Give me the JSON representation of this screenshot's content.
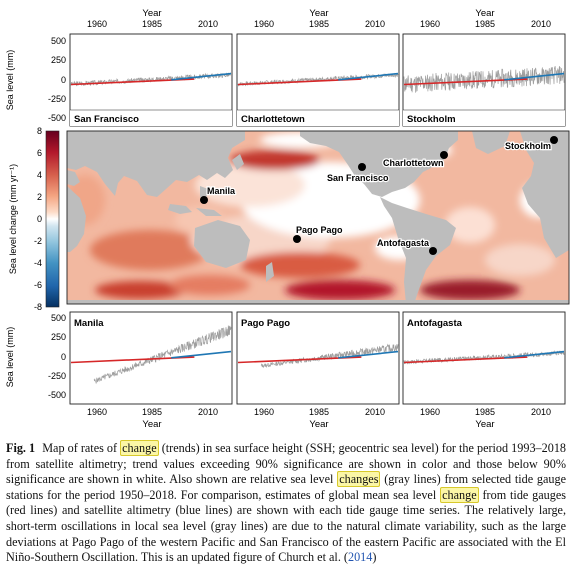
{
  "figure": {
    "year_label": "Year",
    "year_ticks": [
      "1960",
      "1985",
      "2010"
    ],
    "station_ylabel": "Sea level (mm)",
    "station_yticks": [
      "500",
      "250",
      "0",
      "-250",
      "-500"
    ],
    "colorbar_label": "Sea level change (mm yr⁻¹)",
    "colorbar_ticks": [
      "8",
      "6",
      "4",
      "2",
      "0",
      "-2",
      "-4",
      "-6",
      "-8"
    ],
    "top_panels": [
      {
        "title": "San Francisco"
      },
      {
        "title": "Charlottetown"
      },
      {
        "title": "Stockholm"
      }
    ],
    "bottom_panels": [
      {
        "title": "Manila"
      },
      {
        "title": "Pago Pago"
      },
      {
        "title": "Antofagasta"
      }
    ],
    "map_labels": [
      "San Francisco",
      "Charlottetown",
      "Stockholm",
      "Manila",
      "Pago Pago",
      "Antofagasta"
    ],
    "colors": {
      "tide_gauge": "#d62728",
      "altimetry": "#1f77b4",
      "local": "#9e9e9e",
      "land": "#bdbdbd"
    }
  },
  "caption": {
    "label": "Fig. 1",
    "p1": "Map of rates of",
    "h1": "change",
    "p2": "(trends) in sea surface height (SSH; geocentric sea level) for the period 1993–2018 from satellite altimetry; trend values exceeding 90% significance are shown in color and those below 90% significance are shown in white. Also shown are relative sea level",
    "h2": "changes",
    "p3": "(gray lines) from selected tide gauge stations for the period 1950–2018. For comparison, estimates of global mean sea level",
    "h3": "change",
    "p4": "from tide gauges (red lines) and satellite altimetry (blue lines) are shown with each tide gauge time series. The relatively large, short-term oscillations in local sea level (gray lines) are due to the natural climate variability, such as the large deviations at Pago Pago of the western Pacific and San Francisco of the eastern Pacific are associated with the El Niño-Southern Oscillation. This is an updated figure of Church et al. (",
    "ref": "2014",
    "p5": ")"
  }
}
